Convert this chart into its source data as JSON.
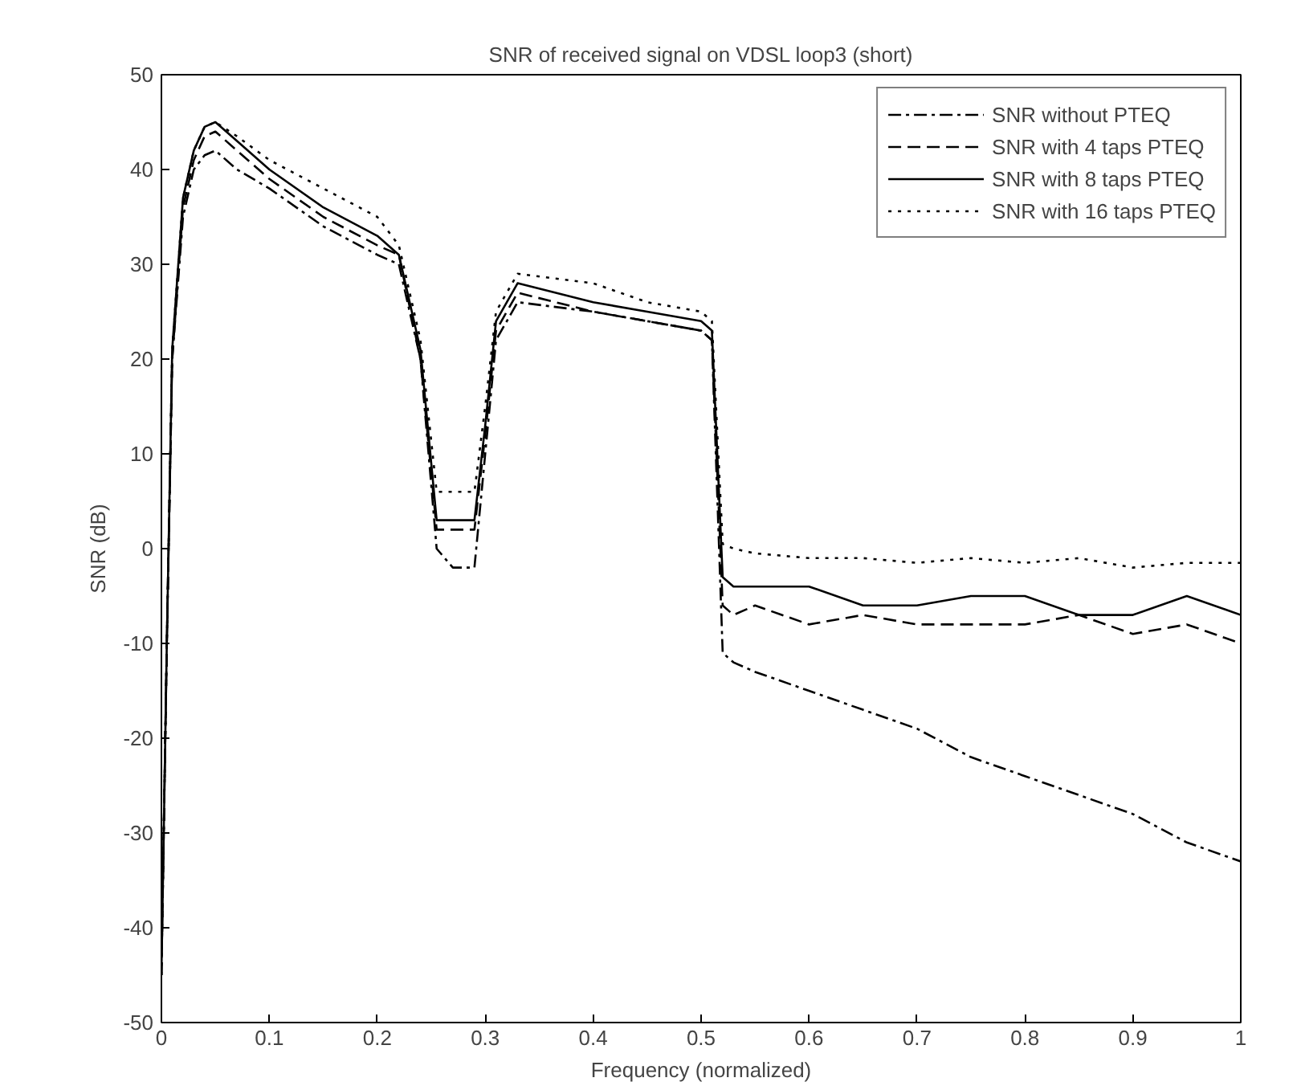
{
  "chart_data": {
    "type": "line",
    "title": "SNR of received signal on VDSL loop3 (short)",
    "xlabel": "Frequency (normalized)",
    "ylabel": "SNR (dB)",
    "xlim": [
      0,
      1
    ],
    "ylim": [
      -50,
      50
    ],
    "xticks": [
      0,
      0.1,
      0.2,
      0.3,
      0.4,
      0.5,
      0.6,
      0.7,
      0.8,
      0.9,
      1
    ],
    "yticks": [
      -50,
      -40,
      -30,
      -20,
      -10,
      0,
      10,
      20,
      30,
      40,
      50
    ],
    "grid": false,
    "legend": "top right",
    "marker": "none",
    "x": [
      0,
      0.005,
      0.01,
      0.02,
      0.03,
      0.04,
      0.05,
      0.07,
      0.1,
      0.15,
      0.2,
      0.22,
      0.24,
      0.255,
      0.27,
      0.29,
      0.3,
      0.31,
      0.33,
      0.4,
      0.45,
      0.5,
      0.51,
      0.52,
      0.53,
      0.55,
      0.6,
      0.65,
      0.7,
      0.75,
      0.8,
      0.85,
      0.9,
      0.95,
      1
    ],
    "series": [
      {
        "name": "SNR without PTEQ",
        "color": "#000000",
        "line_style": "dashdot",
        "values": [
          -45,
          -10,
          20,
          35,
          40,
          41.5,
          42,
          40,
          38,
          34,
          31,
          30,
          20,
          0,
          -2,
          -2,
          10,
          22,
          26,
          25,
          24,
          23,
          22,
          -11,
          -12,
          -13,
          -15,
          -17,
          -19,
          -22,
          -24,
          -26,
          -28,
          -31,
          -33
        ]
      },
      {
        "name": "SNR with 4 taps PTEQ",
        "color": "#000000",
        "line_style": "dashed",
        "values": [
          -45,
          -10,
          20,
          36,
          41,
          43.5,
          44,
          42,
          39,
          35,
          32,
          31,
          20,
          2,
          2,
          2,
          12,
          23,
          27,
          25,
          24,
          23,
          22,
          -6,
          -7,
          -6,
          -8,
          -7,
          -8,
          -8,
          -8,
          -7,
          -9,
          -8,
          -10
        ]
      },
      {
        "name": "SNR with 8 taps PTEQ",
        "color": "#000000",
        "line_style": "solid",
        "values": [
          -45,
          -10,
          21,
          37,
          42,
          44.5,
          45,
          43,
          40,
          36,
          33,
          31,
          21,
          3,
          3,
          3,
          13,
          24,
          28,
          26,
          25,
          24,
          23,
          -3,
          -4,
          -4,
          -4,
          -6,
          -6,
          -5,
          -5,
          -7,
          -7,
          -5,
          -7
        ]
      },
      {
        "name": "SNR with 16 taps PTEQ",
        "color": "#000000",
        "line_style": "dotted",
        "values": [
          -45,
          -10,
          21,
          37,
          42,
          44.5,
          45,
          43.5,
          41,
          38,
          35,
          32,
          22,
          6,
          6,
          6,
          15,
          25,
          29,
          28,
          26,
          25,
          24,
          0.5,
          0,
          -0.5,
          -1,
          -1,
          -1.5,
          -1,
          -1.5,
          -1,
          -2,
          -1.5,
          -1.5
        ]
      }
    ]
  }
}
